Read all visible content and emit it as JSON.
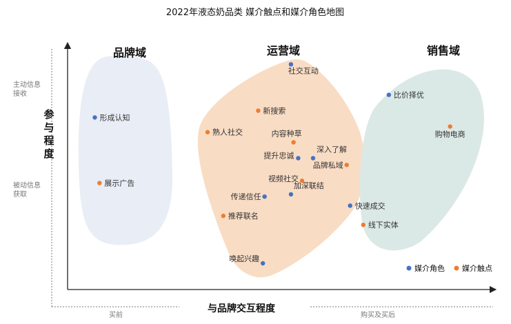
{
  "chart_data": {
    "type": "scatter",
    "title": "2022年液态奶品类 媒介触点和媒介角色地图",
    "xlabel": "与品牌交互程度",
    "ylabel": "参与程度",
    "xlim": [
      0,
      100
    ],
    "ylim": [
      0,
      100
    ],
    "x_left_label": "买前",
    "x_right_label": "购买及买后",
    "y_top_label": "主动信息接收",
    "y_bottom_label": "被动信息获取",
    "grid": false,
    "legend_position": "bottom-right",
    "domains": [
      {
        "label": "品牌域",
        "color": "#e9edf6"
      },
      {
        "label": "运营域",
        "color": "#f9dcc4"
      },
      {
        "label": "销售域",
        "color": "#dbe9e6"
      }
    ],
    "series": [
      {
        "name": "媒介角色",
        "color": "#4472c4",
        "points": [
          {
            "label": "形成认知",
            "x": 6.4,
            "y": 70
          },
          {
            "label": "社交互动",
            "x": 52.5,
            "y": 93.5
          },
          {
            "label": "提升忠诚",
            "x": 54.2,
            "y": 52
          },
          {
            "label": "深入了解",
            "x": 57.7,
            "y": 52
          },
          {
            "label": "传递信任",
            "x": 46.3,
            "y": 35
          },
          {
            "label": "加深联结",
            "x": 52.5,
            "y": 36
          },
          {
            "label": "唤起兴趣",
            "x": 45.9,
            "y": 5.5
          },
          {
            "label": "比价择优",
            "x": 75.5,
            "y": 80
          },
          {
            "label": "快速成交",
            "x": 66.4,
            "y": 31
          }
        ]
      },
      {
        "name": "媒介触点",
        "color": "#ed7d31",
        "points": [
          {
            "label": "展示广告",
            "x": 7.5,
            "y": 41
          },
          {
            "label": "新搜索",
            "x": 44.8,
            "y": 73
          },
          {
            "label": "熟人社交",
            "x": 32.9,
            "y": 63.5
          },
          {
            "label": "内容种草",
            "x": 53.1,
            "y": 59
          },
          {
            "label": "品牌私域",
            "x": 65.6,
            "y": 49
          },
          {
            "label": "视频社交",
            "x": 55.1,
            "y": 42
          },
          {
            "label": "推荐联名",
            "x": 36.6,
            "y": 26.5
          },
          {
            "label": "购物电商",
            "x": 89.9,
            "y": 66
          },
          {
            "label": "线下实体",
            "x": 69.5,
            "y": 22.5
          }
        ]
      }
    ]
  }
}
